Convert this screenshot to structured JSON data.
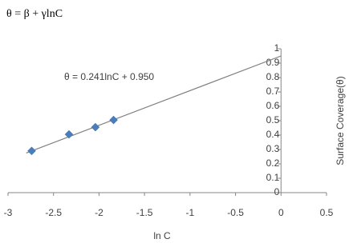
{
  "chart_data": {
    "type": "scatter",
    "title": "θ = β + γlnC",
    "x_label": "ln C",
    "y_label": "Surface Coverage(θ)",
    "x": [
      -2.74,
      -2.33,
      -2.04,
      -1.84
    ],
    "values": [
      0.29,
      0.405,
      0.455,
      0.505
    ],
    "color": "#4a7ebb",
    "trendline": {
      "slope": 0.241,
      "intercept": 0.95,
      "label": "θ = 0.241lnC + 0.950",
      "x_range": [
        -2.8,
        0
      ],
      "color": "#808080"
    },
    "xlim": [
      -3,
      0.5
    ],
    "xticks": [
      -3,
      -2.5,
      -2,
      -1.5,
      -1,
      -0.5,
      0,
      0.5
    ],
    "ylim": [
      0,
      1
    ],
    "yticks": [
      0,
      0.1,
      0.2,
      0.3,
      0.4,
      0.5,
      0.6,
      0.7,
      0.8,
      0.9,
      1
    ]
  }
}
